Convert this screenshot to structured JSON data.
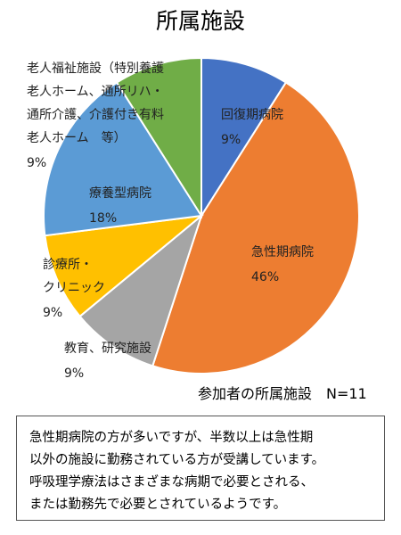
{
  "chart_data": {
    "type": "pie",
    "title": "所属施設",
    "subtitle": "参加者の所属施設　N=11",
    "categories": [
      "回復期病院",
      "急性期病院",
      "教育、研究施設",
      "診療所・\nクリニック",
      "療養型病院",
      "老人福祉施設（特別養護\n老人ホーム、通所リハ・\n通所介護、介護付き有料\n老人ホーム　等）"
    ],
    "values": [
      9,
      46,
      9,
      9,
      18,
      9
    ],
    "value_labels": [
      "9%",
      "46%",
      "9%",
      "9%",
      "18%",
      "9%"
    ],
    "colors": [
      "#4472c4",
      "#ed7d31",
      "#a5a5a5",
      "#ffc000",
      "#5b9bd5",
      "#70ad47"
    ]
  },
  "note": "急性期病院の方が多いですが、半数以上は急性期\n以外の施設に勤務されている方が受講しています。\n呼吸理学療法はさまざまな病期で必要とされる、\nまたは勤務先で必要とされているようです。"
}
